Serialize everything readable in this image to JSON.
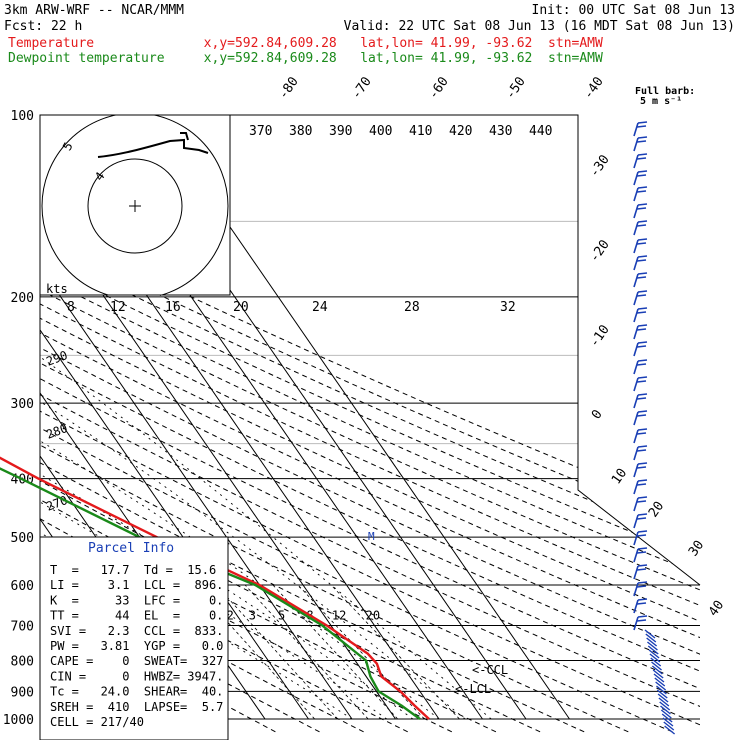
{
  "header": {
    "line1_left": "3km ARW-WRF -- NCAR/MMM",
    "line1_right": "Init: 00 UTC Sat 08 Jun 13",
    "line2_left": "Fcst:    22 h",
    "line2_right": "Valid: 22 UTC Sat 08 Jun 13 (16 MDT Sat 08 Jun 13)",
    "line3": "Temperature              x,y=592.84,609.28   lat,lon= 41.99, -93.62  stn=AMW",
    "line4": "Dewpoint temperature     x,y=592.84,609.28   lat,lon= 41.99, -93.62  stn=AMW"
  },
  "barb_legend": {
    "line1": "Full barb:",
    "line2": "5 m s⁻¹"
  },
  "parcel_info": {
    "title": "Parcel Info",
    "rows": [
      "T  =   17.7  Td =  15.6",
      "LI =    3.1  LCL =  896.",
      "K  =     33  LFC =    0.",
      "TT =     44  EL  =    0.",
      "SVI =   2.3  CCL =  833.",
      "PW =   3.81  YGP =   0.0",
      "CAPE =    0  SWEAT=  327",
      "CIN =     0  HWBZ= 3947.",
      "Tc =   24.0  SHEAR=  40.",
      "SREH =  410  LAPSE=  5.7",
      "CELL = 217/40"
    ]
  },
  "hodograph": {
    "units": "kts",
    "ring_labels": [
      "5",
      "4"
    ],
    "u_labels": [
      "8",
      "12",
      "16",
      "20",
      "24",
      "28",
      "32"
    ]
  },
  "annotations": {
    "ccl": "<-CCL",
    "lcl": "<-LCL",
    "m_marker": "M"
  },
  "colors": {
    "temperature": "#e41a1c",
    "dewpoint": "#1a8a1a",
    "grid": "#000000",
    "accent": "#1a3fb5"
  },
  "chart_data": {
    "type": "line",
    "title": "Skew-T log-P sounding, stn=AMW",
    "pressure_levels": [
      100,
      200,
      300,
      400,
      500,
      600,
      700,
      800,
      900,
      1000
    ],
    "temperature_tick_labels": [
      "-80",
      "-70",
      "-60",
      "-50",
      "-40",
      "-30",
      "-20",
      "-10",
      "0",
      "10",
      "20",
      "30",
      "40"
    ],
    "theta_labels": [
      "370",
      "380",
      "390",
      "400",
      "410",
      "420",
      "430",
      "440"
    ],
    "theta_side_labels": [
      "290",
      "280",
      "270"
    ],
    "mixing_ratio_labels": [
      "2",
      "3",
      "5",
      "8",
      "12",
      "20"
    ],
    "series": [
      {
        "name": "Temperature",
        "pressure": [
          100,
          115,
          135,
          160,
          175,
          190,
          200,
          230,
          300,
          400,
          500,
          600,
          700,
          780,
          810,
          850,
          900,
          950,
          1000
        ],
        "values": [
          -58,
          -60,
          -62,
          -64,
          -68,
          -74,
          -78,
          -70,
          -54,
          -34,
          -16,
          0,
          9,
          14,
          14.5,
          13.5,
          15.5,
          16.5,
          17.7
        ]
      },
      {
        "name": "Dewpoint temperature",
        "pressure": [
          100,
          120,
          150,
          175,
          190,
          200,
          230,
          300,
          400,
          500,
          600,
          700,
          800,
          850,
          900,
          950,
          1000
        ],
        "values": [
          -82,
          -83,
          -91,
          -90,
          -87,
          -87,
          -80,
          -62,
          -38,
          -20,
          -1,
          8,
          12.5,
          11,
          10.5,
          13.5,
          15.6
        ]
      }
    ],
    "wind_barbs_column": "right side, from 100 to 1000 hPa"
  }
}
